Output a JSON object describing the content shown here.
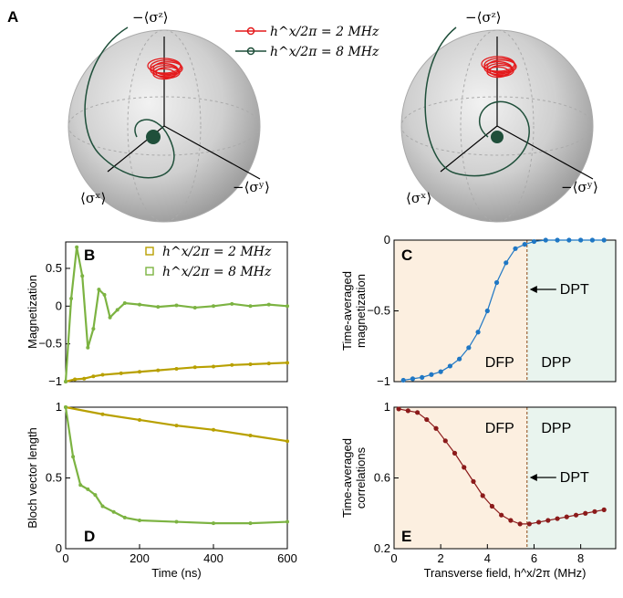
{
  "colors": {
    "red": "#e41a1c",
    "darkgreen": "#1f4f3a",
    "gold": "#b8a000",
    "lightgreen": "#7cb342",
    "blue": "#1f77c4",
    "maroon": "#8b1a1a",
    "dfp_bg": "#fcefe0",
    "dpp_bg": "#e9f4ee",
    "sphere": "#cfcfcf"
  },
  "panelA": {
    "label": "A",
    "legend": [
      {
        "text": "h^x/2π = 2 MHz",
        "color": "red"
      },
      {
        "text": "h^x/2π = 8 MHz",
        "color": "darkgreen"
      }
    ],
    "axis_labels": {
      "z": "−⟨σᶻ⟩",
      "x": "⟨σˣ⟩",
      "y": "−⟨σʸ⟩"
    }
  },
  "chart_data": [
    {
      "panel": "B",
      "type": "line",
      "title": "",
      "xlabel": "",
      "ylabel": "Magnetization",
      "xlim": [
        0,
        600
      ],
      "ylim": [
        -1,
        0.85
      ],
      "xticks": [
        0,
        200,
        400,
        600
      ],
      "yticks": [
        -1,
        -0.5,
        0,
        0.5
      ],
      "yticklabels": [
        "−1",
        "−0.5",
        "0",
        "0.5"
      ],
      "legend_position": "top-right",
      "series": [
        {
          "name": "h^x/2π = 2 MHz",
          "kind": "data",
          "color": "gold",
          "x": [
            0,
            25,
            50,
            75,
            100,
            150,
            200,
            250,
            300,
            350,
            400,
            450,
            500,
            550,
            600
          ],
          "y": [
            -1,
            -0.97,
            -0.96,
            -0.93,
            -0.91,
            -0.89,
            -0.87,
            -0.85,
            -0.83,
            -0.81,
            -0.8,
            -0.78,
            -0.77,
            -0.76,
            -0.75
          ]
        },
        {
          "name": "h^x/2π = 8 MHz",
          "kind": "data",
          "color": "lightgreen",
          "x": [
            0,
            15,
            30,
            45,
            60,
            75,
            90,
            105,
            120,
            140,
            160,
            200,
            250,
            300,
            350,
            400,
            450,
            500,
            550,
            600
          ],
          "y": [
            -1,
            0.1,
            0.78,
            0.4,
            -0.55,
            -0.3,
            0.22,
            0.15,
            -0.15,
            -0.05,
            0.04,
            0.02,
            -0.01,
            0.01,
            -0.02,
            0.0,
            0.03,
            0.0,
            0.02,
            0.0
          ]
        }
      ]
    },
    {
      "panel": "C",
      "type": "scatter",
      "title": "",
      "xlabel": "",
      "ylabel": "Time-averaged magnetization",
      "xlim": [
        0,
        9.5
      ],
      "ylim": [
        -1,
        0
      ],
      "yticks": [
        -1,
        -0.5,
        0
      ],
      "yticklabels": [
        "−1",
        "−0.5",
        "0"
      ],
      "regions": [
        "DFP",
        "DPP"
      ],
      "annotation": "DPT",
      "transition_x": 5.7,
      "x": [
        0.4,
        0.8,
        1.2,
        1.6,
        2.0,
        2.4,
        2.8,
        3.2,
        3.6,
        4.0,
        4.4,
        4.8,
        5.2,
        5.6,
        6.0,
        6.5,
        7.0,
        7.5,
        8.0,
        8.5,
        9.0
      ],
      "y": [
        -0.99,
        -0.98,
        -0.97,
        -0.95,
        -0.93,
        -0.89,
        -0.84,
        -0.76,
        -0.65,
        -0.5,
        -0.3,
        -0.16,
        -0.06,
        -0.03,
        -0.01,
        0,
        0,
        0,
        0,
        0,
        0
      ]
    },
    {
      "panel": "D",
      "type": "line",
      "title": "",
      "xlabel": "Time (ns)",
      "ylabel": "Bloch vector length",
      "xlim": [
        0,
        600
      ],
      "ylim": [
        0,
        1
      ],
      "xticks": [
        0,
        200,
        400,
        600
      ],
      "yticks": [
        0,
        0.5,
        1
      ],
      "series": [
        {
          "name": "h^x/2π = 2 MHz",
          "kind": "data",
          "color": "gold",
          "x": [
            0,
            100,
            200,
            300,
            400,
            500,
            600
          ],
          "y": [
            1,
            0.95,
            0.91,
            0.87,
            0.84,
            0.8,
            0.76
          ]
        },
        {
          "name": "h^x/2π = 8 MHz",
          "kind": "data",
          "color": "lightgreen",
          "x": [
            0,
            20,
            40,
            60,
            80,
            100,
            130,
            160,
            200,
            300,
            400,
            500,
            600
          ],
          "y": [
            1,
            0.65,
            0.45,
            0.42,
            0.38,
            0.3,
            0.26,
            0.22,
            0.2,
            0.19,
            0.18,
            0.18,
            0.19
          ]
        }
      ]
    },
    {
      "panel": "E",
      "type": "scatter",
      "title": "",
      "xlabel": "Transverse field, h^x/2π (MHz)",
      "ylabel": "Time-averaged correlations",
      "xlim": [
        0,
        9.5
      ],
      "ylim": [
        0.2,
        1
      ],
      "xticks": [
        0,
        2,
        4,
        6,
        8
      ],
      "yticks": [
        0.2,
        0.6,
        1
      ],
      "regions": [
        "DFP",
        "DPP"
      ],
      "annotation": "DPT",
      "transition_x": 5.7,
      "x": [
        0.2,
        0.6,
        1.0,
        1.4,
        1.8,
        2.2,
        2.6,
        3.0,
        3.4,
        3.8,
        4.2,
        4.6,
        5.0,
        5.4,
        5.8,
        6.2,
        6.6,
        7.0,
        7.4,
        7.8,
        8.2,
        8.6,
        9.0
      ],
      "y": [
        0.99,
        0.98,
        0.97,
        0.93,
        0.88,
        0.81,
        0.74,
        0.66,
        0.58,
        0.5,
        0.44,
        0.39,
        0.36,
        0.34,
        0.34,
        0.35,
        0.36,
        0.37,
        0.38,
        0.39,
        0.4,
        0.41,
        0.42
      ]
    }
  ]
}
